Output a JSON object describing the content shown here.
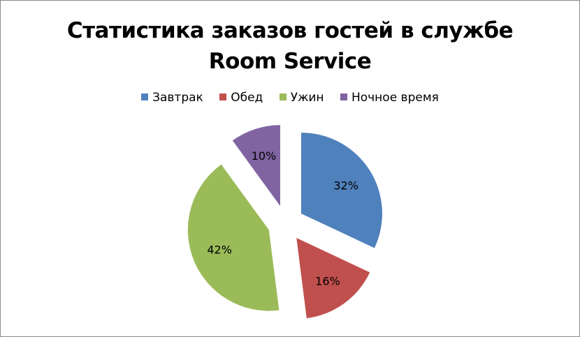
{
  "chart_data": {
    "type": "pie",
    "title": [
      "Статистика заказов гостей в службе",
      "Room Service"
    ],
    "categories": [
      "Завтрак",
      "Обед",
      "Ужин",
      "Ночное время"
    ],
    "values": [
      32,
      16,
      42,
      10
    ],
    "labels": [
      "32%",
      "16%",
      "42%",
      "10%"
    ],
    "colors": [
      "#4f81bd",
      "#c0504d",
      "#9bbb59",
      "#8064a2"
    ],
    "exploded": true,
    "legend_position": "top"
  }
}
